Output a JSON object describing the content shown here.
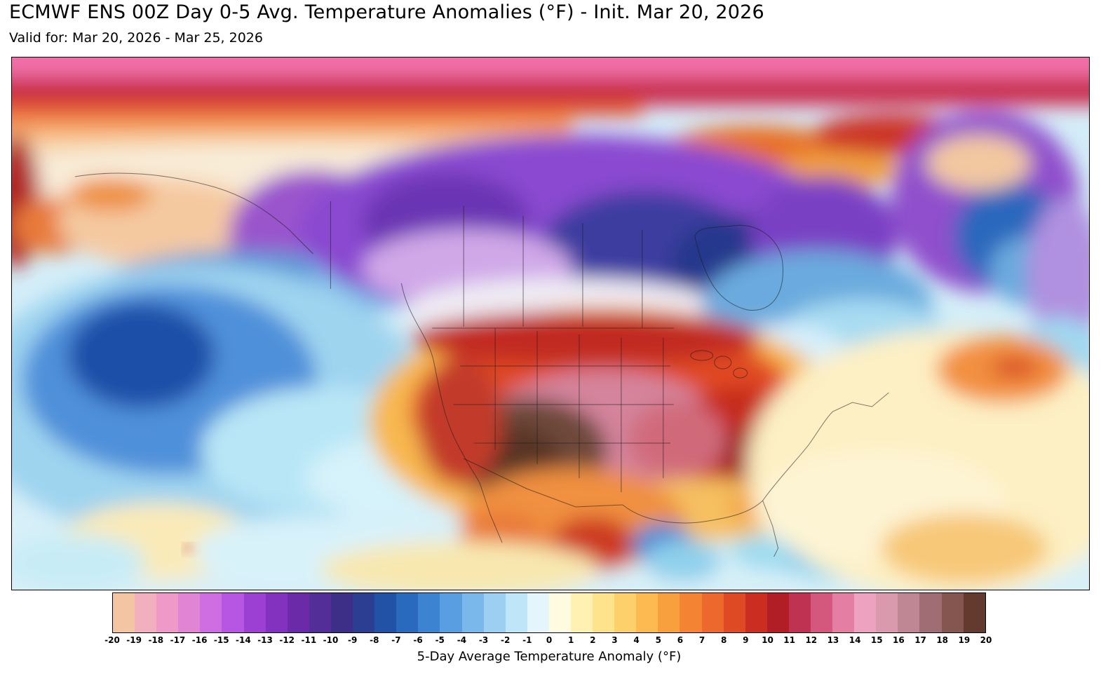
{
  "header": {
    "title": "ECMWF ENS 00Z Day 0-5 Avg. Temperature Anomalies (°F) - Init. Mar 20, 2026",
    "subtitle": "Valid for: Mar 20, 2026 - Mar 25, 2026"
  },
  "colorbar": {
    "caption": "5-Day Average Temperature Anomaly (°F)",
    "ticks": [
      "-20",
      "-19",
      "-18",
      "-17",
      "-16",
      "-15",
      "-14",
      "-13",
      "-12",
      "-11",
      "-10",
      "-9",
      "-8",
      "-7",
      "-6",
      "-5",
      "-4",
      "-3",
      "-2",
      "-1",
      "0",
      "1",
      "2",
      "3",
      "4",
      "5",
      "6",
      "7",
      "8",
      "9",
      "10",
      "11",
      "12",
      "13",
      "14",
      "15",
      "16",
      "17",
      "18",
      "19",
      "20"
    ],
    "segment_colors": [
      "#f4c5a2",
      "#f2afbe",
      "#ee99c8",
      "#e284d4",
      "#cf6ee2",
      "#b656e2",
      "#9c40d4",
      "#8232bf",
      "#6b2aa8",
      "#532d98",
      "#3d2f88",
      "#2b3e92",
      "#2152a6",
      "#2a6abe",
      "#3c84d2",
      "#5a9ee2",
      "#7ab8ec",
      "#9ccff2",
      "#bfe6f8",
      "#e4f6fc",
      "#fffbe0",
      "#fff1b2",
      "#ffe38c",
      "#fed06c",
      "#fcba50",
      "#f9a03e",
      "#f48434",
      "#ec682c",
      "#de4a24",
      "#cb2d20",
      "#b21e26",
      "#c03252",
      "#d4577e",
      "#e47ea2",
      "#eda3c0",
      "#da9aae",
      "#bf8694",
      "#a06d74",
      "#855650",
      "#643a2e"
    ],
    "range": {
      "min": -20,
      "max": 20
    }
  },
  "map": {
    "region": "North America",
    "warm_anomaly_peak_color": "#583527",
    "cold_anomaly_peak_color": "#1d4fa8"
  }
}
